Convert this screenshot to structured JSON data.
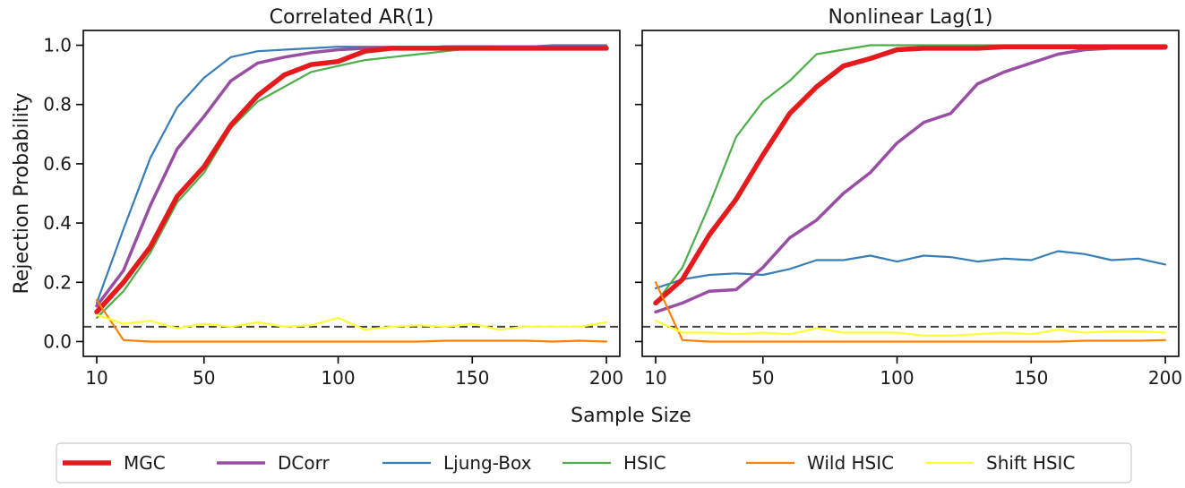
{
  "chart_data": {
    "type": "line",
    "xlabel": "Sample Size",
    "ylabel": "Rejection Probability",
    "xlim": [
      5,
      205
    ],
    "ylim": [
      -0.05,
      1.05
    ],
    "xticks": [
      10,
      50,
      100,
      150,
      200
    ],
    "yticks": [
      0.0,
      0.2,
      0.4,
      0.6,
      0.8,
      1.0
    ],
    "reference_line": 0.05,
    "legend_position": "bottom-center",
    "x": [
      10,
      20,
      30,
      40,
      50,
      60,
      70,
      80,
      90,
      100,
      110,
      120,
      130,
      140,
      150,
      160,
      170,
      180,
      190,
      200
    ],
    "series_styles": [
      {
        "name": "MGC",
        "color": "#e41a1c",
        "width": 5.5
      },
      {
        "name": "DCorr",
        "color": "#984ea3",
        "width": 3.5
      },
      {
        "name": "Ljung-Box",
        "color": "#377eb8",
        "width": 2.2
      },
      {
        "name": "HSIC",
        "color": "#4daf4a",
        "width": 2.2
      },
      {
        "name": "Wild HSIC",
        "color": "#ff7f00",
        "width": 2.2
      },
      {
        "name": "Shift HSIC",
        "color": "#ffff33",
        "width": 2.2
      }
    ],
    "panels": [
      {
        "title": "Correlated AR(1)",
        "series": [
          {
            "name": "Ljung-Box",
            "values": [
              0.13,
              0.38,
              0.62,
              0.79,
              0.89,
              0.96,
              0.98,
              0.985,
              0.99,
              0.995,
              0.995,
              0.995,
              0.995,
              0.995,
              0.995,
              0.995,
              0.995,
              1.0,
              1.0,
              1.0
            ]
          },
          {
            "name": "DCorr",
            "values": [
              0.12,
              0.24,
              0.46,
              0.65,
              0.76,
              0.88,
              0.94,
              0.96,
              0.975,
              0.985,
              0.99,
              0.99,
              0.99,
              0.995,
              0.995,
              0.995,
              0.995,
              0.995,
              0.995,
              0.995
            ]
          },
          {
            "name": "HSIC",
            "values": [
              0.08,
              0.17,
              0.3,
              0.47,
              0.57,
              0.72,
              0.81,
              0.86,
              0.91,
              0.93,
              0.95,
              0.96,
              0.97,
              0.98,
              0.99,
              0.995,
              0.995,
              0.995,
              0.995,
              0.995
            ]
          },
          {
            "name": "MGC",
            "values": [
              0.1,
              0.2,
              0.32,
              0.49,
              0.59,
              0.73,
              0.83,
              0.9,
              0.935,
              0.945,
              0.98,
              0.99,
              0.99,
              0.99,
              0.99,
              0.99,
              0.99,
              0.99,
              0.99,
              0.99
            ]
          },
          {
            "name": "Wild HSIC",
            "values": [
              0.14,
              0.005,
              0.0,
              0.0,
              0.0,
              0.0,
              0.0,
              0.0,
              0.0,
              0.0,
              0.0,
              0.0,
              0.0,
              0.003,
              0.003,
              0.003,
              0.003,
              0.0,
              0.003,
              0.0
            ]
          },
          {
            "name": "Shift HSIC",
            "values": [
              0.09,
              0.06,
              0.07,
              0.045,
              0.06,
              0.05,
              0.065,
              0.05,
              0.055,
              0.08,
              0.04,
              0.05,
              0.055,
              0.05,
              0.06,
              0.04,
              0.05,
              0.05,
              0.05,
              0.065
            ]
          }
        ]
      },
      {
        "title": "Nonlinear Lag(1)",
        "series": [
          {
            "name": "Ljung-Box",
            "values": [
              0.18,
              0.21,
              0.225,
              0.23,
              0.225,
              0.245,
              0.275,
              0.275,
              0.29,
              0.27,
              0.29,
              0.285,
              0.27,
              0.28,
              0.275,
              0.305,
              0.295,
              0.275,
              0.28,
              0.26
            ]
          },
          {
            "name": "DCorr",
            "values": [
              0.1,
              0.13,
              0.17,
              0.175,
              0.25,
              0.35,
              0.41,
              0.5,
              0.57,
              0.67,
              0.74,
              0.77,
              0.87,
              0.91,
              0.94,
              0.97,
              0.985,
              0.99,
              0.99,
              0.99
            ]
          },
          {
            "name": "HSIC",
            "values": [
              0.13,
              0.25,
              0.46,
              0.69,
              0.81,
              0.88,
              0.97,
              0.985,
              1.0,
              1.0,
              1.0,
              1.0,
              1.0,
              1.0,
              1.0,
              1.0,
              1.0,
              1.0,
              1.0,
              1.0
            ]
          },
          {
            "name": "MGC",
            "values": [
              0.13,
              0.21,
              0.36,
              0.48,
              0.63,
              0.77,
              0.86,
              0.93,
              0.955,
              0.985,
              0.99,
              0.99,
              0.99,
              0.995,
              0.995,
              0.995,
              0.995,
              0.995,
              0.995,
              0.995
            ]
          },
          {
            "name": "Wild HSIC",
            "values": [
              0.2,
              0.005,
              0.0,
              0.0,
              0.0,
              0.0,
              0.0,
              0.0,
              0.0,
              0.0,
              0.0,
              0.0,
              0.0,
              0.0,
              0.0,
              0.0,
              0.003,
              0.003,
              0.003,
              0.005
            ]
          },
          {
            "name": "Shift HSIC",
            "values": [
              0.07,
              0.03,
              0.03,
              0.025,
              0.03,
              0.025,
              0.045,
              0.03,
              0.03,
              0.03,
              0.02,
              0.02,
              0.025,
              0.03,
              0.025,
              0.04,
              0.03,
              0.035,
              0.035,
              0.03
            ]
          }
        ]
      }
    ]
  }
}
